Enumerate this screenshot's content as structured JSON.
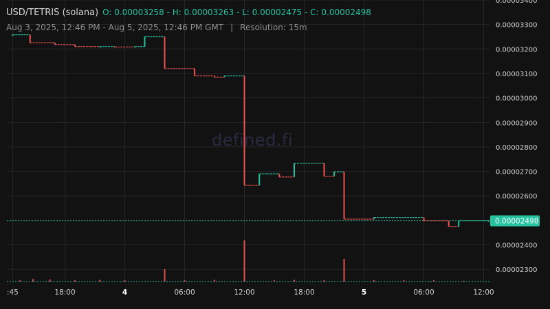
{
  "header": {
    "pair": "USD/TETRIS (solana)",
    "ohlc": "O: 0.00003258 - H: 0.00003263 - L: 0.00002475 - C: 0.00002498",
    "range": "Aug 3, 2025, 12:46 PM - Aug 5, 2025, 12:46 PM GMT",
    "separator": "|",
    "resolution": "Resolution: 15m"
  },
  "watermark": "defined.fi",
  "colors": {
    "up": "#26c3a0",
    "down": "#ef5350",
    "grid": "#262626",
    "axis_text": "#cfcfcf",
    "background": "#121212"
  },
  "chart_data": {
    "type": "candlestick",
    "ylim": [
      2.25e-05,
      3.4e-05
    ],
    "yticks": [
      "0.00002300",
      "0.00002400",
      "0.00002500",
      "0.00002600",
      "0.00002700",
      "0.00002800",
      "0.00002900",
      "0.00003000",
      "0.00003100",
      "0.00003200",
      "0.00003300",
      "0.00003400"
    ],
    "xticks": [
      ":45",
      "18:00",
      "4",
      "06:00",
      "12:00",
      "18:00",
      "5",
      "06:00",
      "12:00"
    ],
    "xtick_hours": [
      -0.25,
      5,
      11,
      17,
      23,
      29,
      35,
      41,
      47
    ],
    "bold_xticks": [
      "4",
      "5"
    ],
    "last_price": {
      "label": "0.00002498",
      "value": 2.498e-05
    },
    "candles": [
      {
        "h": -0.25,
        "o": 3.258e-05,
        "c": 3.258e-05
      },
      {
        "h": 1.5,
        "o": 3.258e-05,
        "c": 3.225e-05
      },
      {
        "h": 4,
        "o": 3.225e-05,
        "c": 3.218e-05
      },
      {
        "h": 6,
        "o": 3.218e-05,
        "c": 3.21e-05
      },
      {
        "h": 8.5,
        "o": 3.21e-05,
        "c": 3.21e-05
      },
      {
        "h": 10,
        "o": 3.21e-05,
        "c": 3.208e-05
      },
      {
        "h": 12,
        "o": 3.208e-05,
        "c": 3.21e-05
      },
      {
        "h": 13,
        "o": 3.21e-05,
        "c": 3.25e-05
      },
      {
        "h": 15,
        "o": 3.25e-05,
        "c": 3.12e-05
      },
      {
        "h": 18,
        "o": 3.12e-05,
        "c": 3.09e-05
      },
      {
        "h": 20,
        "o": 3.09e-05,
        "c": 3.085e-05
      },
      {
        "h": 21,
        "o": 3.085e-05,
        "c": 3.09e-05
      },
      {
        "h": 23,
        "o": 3.09e-05,
        "c": 2.643e-05
      },
      {
        "h": 24.5,
        "o": 2.643e-05,
        "c": 2.69e-05
      },
      {
        "h": 26.5,
        "o": 2.69e-05,
        "c": 2.677e-05
      },
      {
        "h": 28,
        "o": 2.677e-05,
        "c": 2.733e-05
      },
      {
        "h": 31,
        "o": 2.733e-05,
        "c": 2.68e-05
      },
      {
        "h": 32,
        "o": 2.68e-05,
        "c": 2.698e-05
      },
      {
        "h": 33,
        "o": 2.698e-05,
        "c": 2.505e-05
      },
      {
        "h": 36,
        "o": 2.505e-05,
        "c": 2.512e-05
      },
      {
        "h": 41,
        "o": 2.512e-05,
        "c": 2.498e-05
      },
      {
        "h": 43.5,
        "o": 2.498e-05,
        "c": 2.475e-05
      },
      {
        "h": 44.5,
        "o": 2.475e-05,
        "c": 2.498e-05
      },
      {
        "h": 47.5,
        "o": 2.498e-05,
        "c": 2.498e-05
      }
    ],
    "volumes": [
      {
        "h": 0.5,
        "v": 0.03
      },
      {
        "h": 1.8,
        "v": 0.06
      },
      {
        "h": 3.5,
        "v": 0.05
      },
      {
        "h": 6,
        "v": 0.03
      },
      {
        "h": 8.5,
        "v": 0.04
      },
      {
        "h": 11,
        "v": 0.03
      },
      {
        "h": 15,
        "v": 0.3
      },
      {
        "h": 17,
        "v": 0.03
      },
      {
        "h": 20,
        "v": 0.04
      },
      {
        "h": 23,
        "v": 1.0
      },
      {
        "h": 26,
        "v": 0.03
      },
      {
        "h": 28,
        "v": 0.04
      },
      {
        "h": 31,
        "v": 0.03
      },
      {
        "h": 33,
        "v": 0.55
      },
      {
        "h": 36,
        "v": 0.03
      },
      {
        "h": 39,
        "v": 0.03
      },
      {
        "h": 42,
        "v": 0.03
      },
      {
        "h": 45,
        "v": 0.02
      }
    ]
  }
}
